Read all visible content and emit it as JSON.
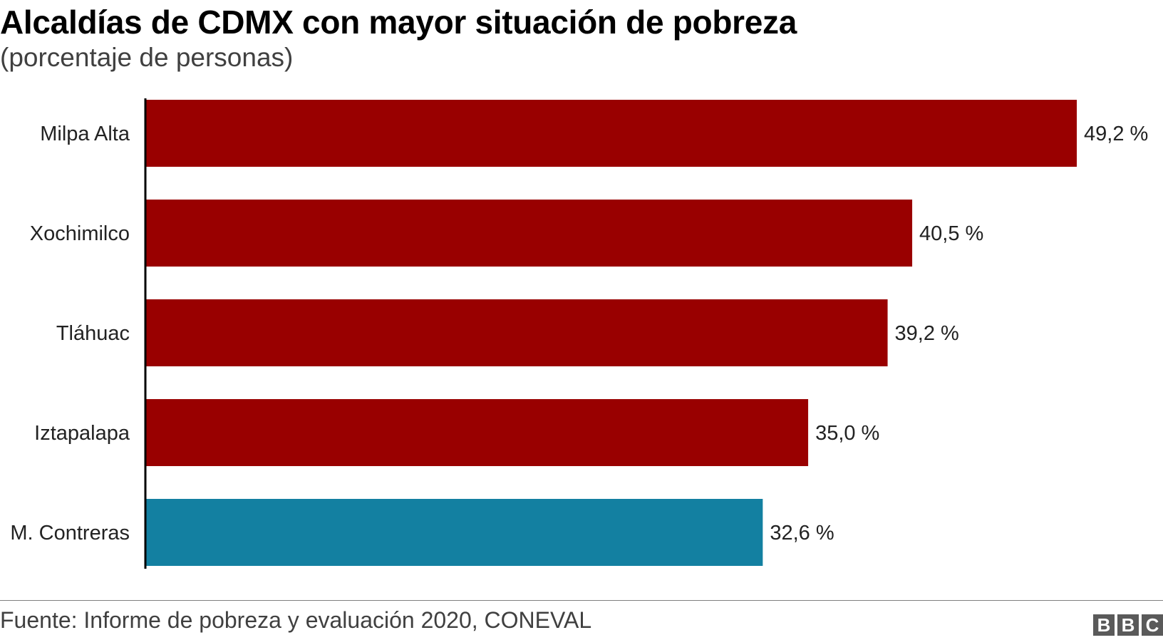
{
  "title": "Alcaldías de CDMX con mayor situación de pobreza",
  "subtitle": "(porcentaje de personas)",
  "source": "Fuente: Informe de pobreza y evaluación 2020, CONEVAL",
  "logo": [
    "B",
    "B",
    "C"
  ],
  "colors": {
    "highlight": "#990000",
    "accent": "#1380A1",
    "axis": "#000000",
    "text": "#222222"
  },
  "chart_data": {
    "type": "bar",
    "orientation": "horizontal",
    "categories": [
      "Milpa Alta",
      "Xochimilco",
      "Tláhuac",
      "Iztapalapa",
      "M. Contreras"
    ],
    "values": [
      49.2,
      40.5,
      39.2,
      35.0,
      32.6
    ],
    "value_labels": [
      "49,2 %",
      "40,5 %",
      "39,2 %",
      "35,0 %",
      "32,6 %"
    ],
    "bar_colors": [
      "#990000",
      "#990000",
      "#990000",
      "#990000",
      "#1380A1"
    ],
    "title": "Alcaldías de CDMX con mayor situación de pobreza",
    "subtitle": "(porcentaje de personas)",
    "xlim": [
      0,
      49.2
    ],
    "grid": false,
    "legend": "none"
  }
}
